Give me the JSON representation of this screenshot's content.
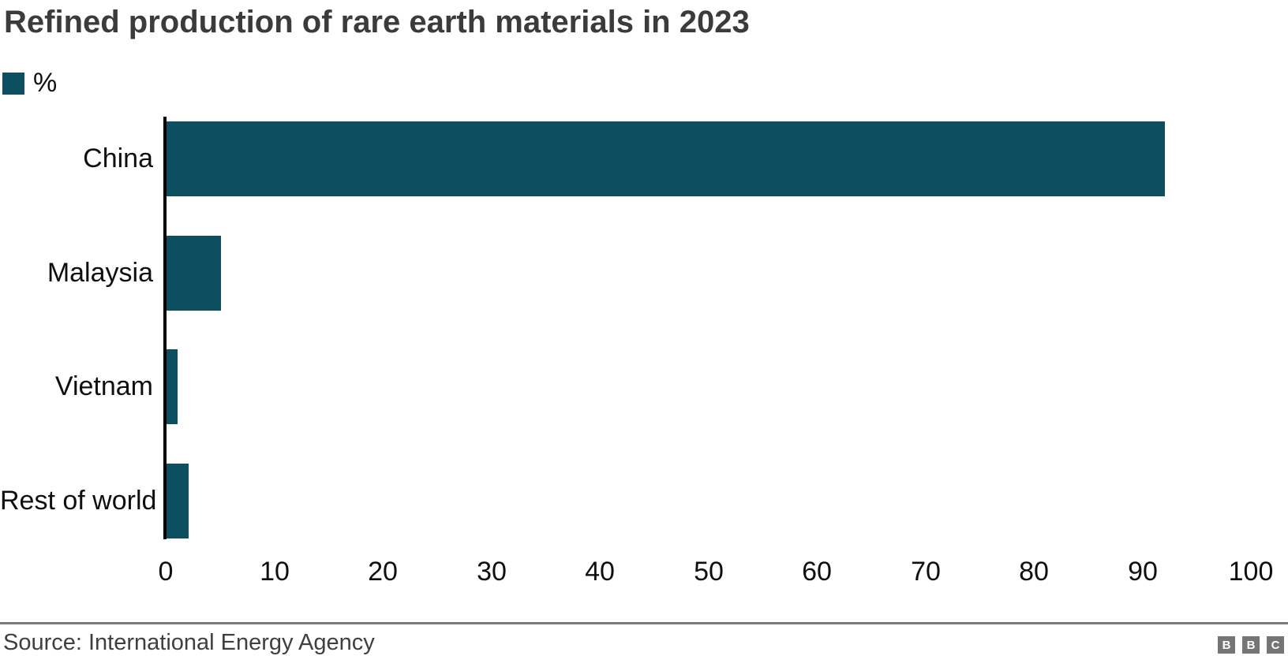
{
  "chart_data": {
    "type": "bar",
    "orientation": "horizontal",
    "title": "Refined production of rare earth materials in 2023",
    "legend_label": "%",
    "legend_position": "top-left",
    "categories": [
      "China",
      "Malaysia",
      "Vietnam",
      "Rest of world"
    ],
    "values": [
      92,
      5,
      1,
      2
    ],
    "xlim": [
      0,
      100
    ],
    "xticks": [
      0,
      10,
      20,
      30,
      40,
      50,
      60,
      70,
      80,
      90,
      100
    ],
    "grid": false,
    "bar_color": "#0d4e5f"
  },
  "footer": {
    "source": "Source: International Energy Agency",
    "logo_letters": [
      "B",
      "B",
      "C"
    ]
  },
  "colors": {
    "title": "#3b3b3b",
    "axis_line": "#000000",
    "tick_text": "#0f0f0f",
    "divider": "#7a7a7a",
    "source_text": "#3f3f3f",
    "logo_bg": "#757575",
    "logo_text": "#ffffff"
  }
}
